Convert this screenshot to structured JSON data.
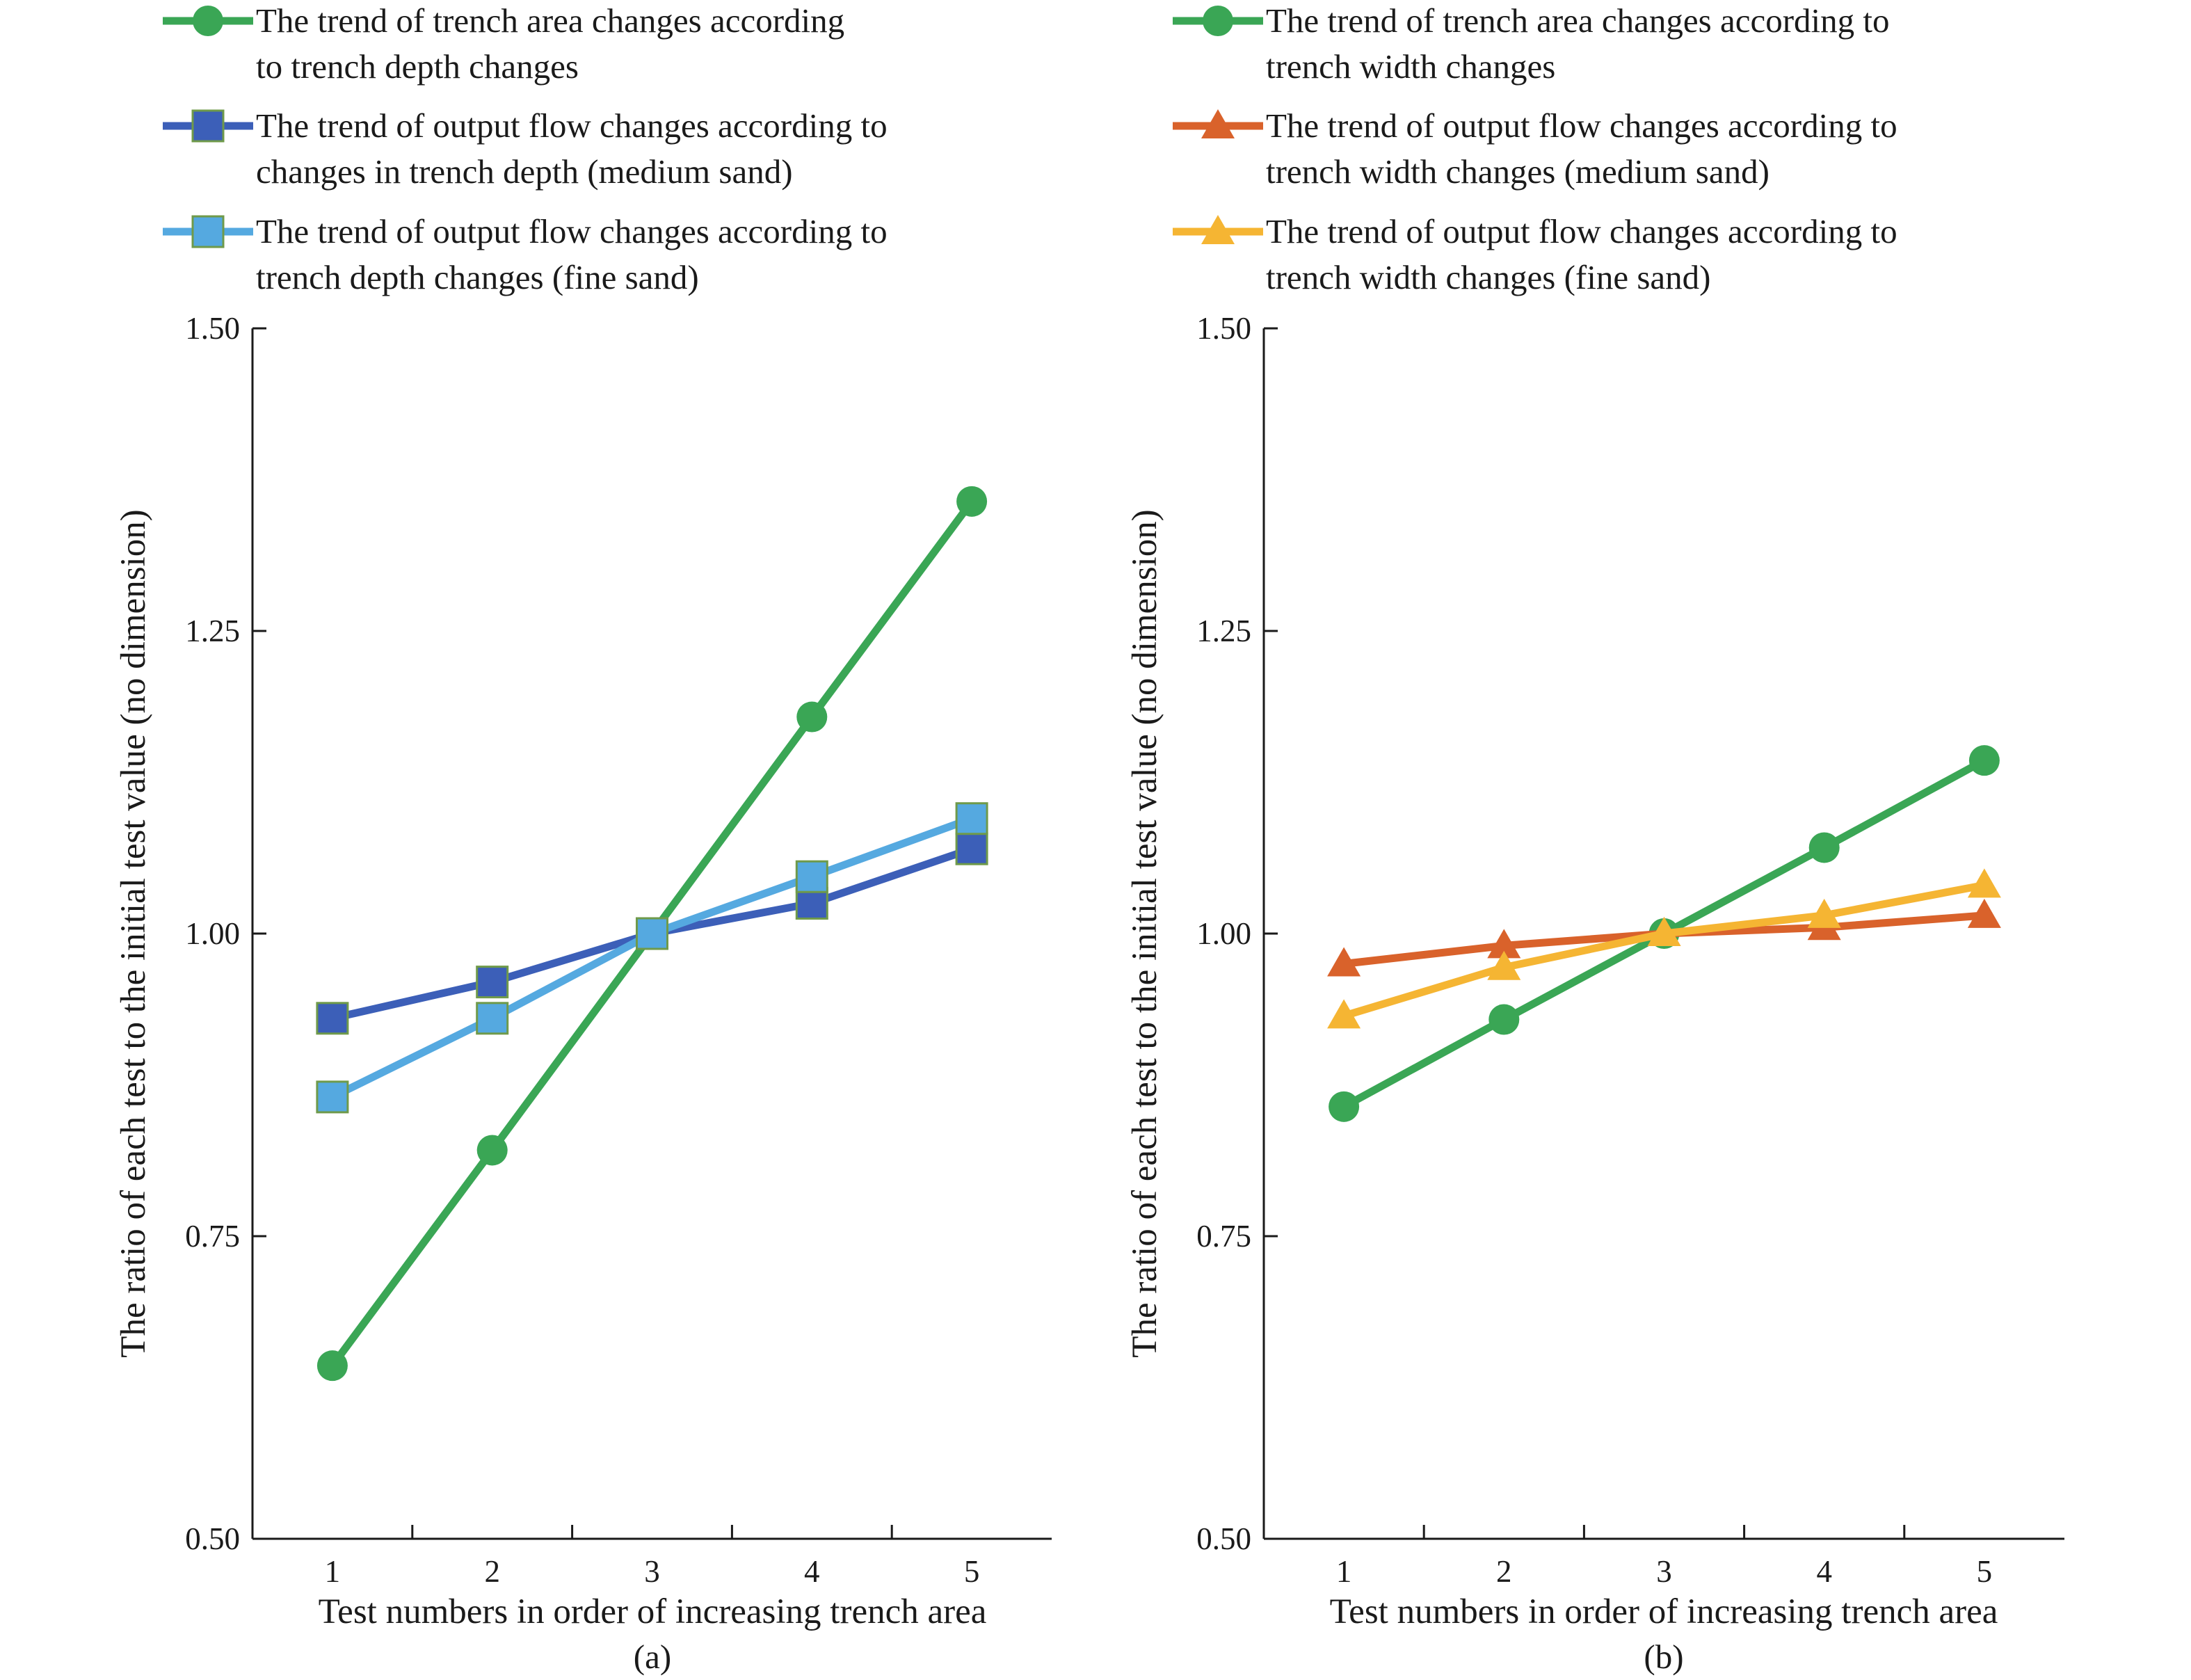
{
  "chart_data": [
    {
      "type": "line",
      "panel_label": "(a)",
      "x": [
        1,
        2,
        3,
        4,
        5
      ],
      "xlabel": "Test numbers in order of increasing trench area",
      "ylabel": "The ratio of each test to the initial test value (no dimension)",
      "ylim": [
        0.5,
        1.5
      ],
      "yticks": [
        "0.50",
        "0.75",
        "1.00",
        "1.25",
        "1.50"
      ],
      "xticks": [
        "1",
        "2",
        "3",
        "4",
        "5"
      ],
      "grid": false,
      "legend_position": "top",
      "series": [
        {
          "name_lines": [
            "The trend of trench area changes according",
            "to trench depth changes"
          ],
          "values": [
            0.643,
            0.821,
            1.0,
            1.179,
            1.357
          ],
          "color": "#3aa655",
          "marker": "circle"
        },
        {
          "name_lines": [
            "The trend of output flow changes according to",
            "changes in trench depth (medium sand)"
          ],
          "values": [
            0.93,
            0.96,
            1.0,
            1.025,
            1.07
          ],
          "color": "#3c5fb8",
          "marker": "square"
        },
        {
          "name_lines": [
            "The trend of output flow changes according to",
            "trench depth changes (fine sand)"
          ],
          "values": [
            0.865,
            0.93,
            1.0,
            1.047,
            1.095
          ],
          "color": "#55a9e0",
          "marker": "square"
        }
      ]
    },
    {
      "type": "line",
      "panel_label": "(b)",
      "x": [
        1,
        2,
        3,
        4,
        5
      ],
      "xlabel": "Test numbers in order of increasing trench area",
      "ylabel": "The ratio of each test to the initial test value (no dimension)",
      "ylim": [
        0.5,
        1.5
      ],
      "yticks": [
        "0.50",
        "0.75",
        "1.00",
        "1.25",
        "1.50"
      ],
      "xticks": [
        "1",
        "2",
        "3",
        "4",
        "5"
      ],
      "grid": false,
      "legend_position": "top",
      "series": [
        {
          "name_lines": [
            "The trend of trench area changes according to",
            "trench width changes"
          ],
          "values": [
            0.857,
            0.929,
            1.0,
            1.071,
            1.143
          ],
          "color": "#3aa655",
          "marker": "circle"
        },
        {
          "name_lines": [
            "The trend of output flow changes according to",
            "trench width changes (medium sand)"
          ],
          "values": [
            0.975,
            0.99,
            1.0,
            1.005,
            1.015
          ],
          "color": "#d9622b",
          "marker": "triangle"
        },
        {
          "name_lines": [
            "The trend of output flow changes according to",
            "trench width changes (fine sand)"
          ],
          "values": [
            0.932,
            0.972,
            1.0,
            1.015,
            1.04
          ],
          "color": "#f5b533",
          "marker": "triangle"
        }
      ]
    }
  ]
}
